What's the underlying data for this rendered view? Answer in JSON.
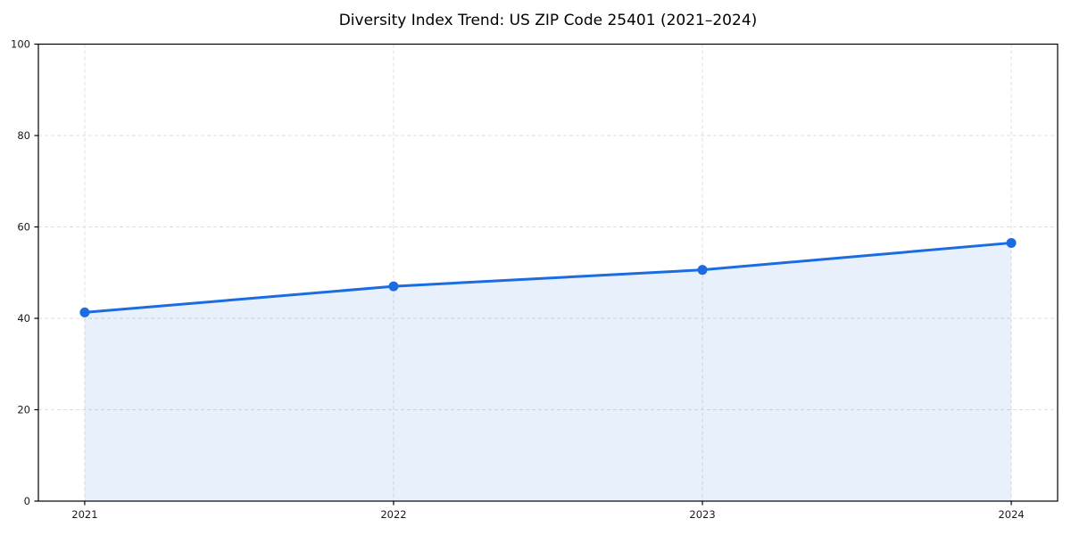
{
  "chart_data": {
    "type": "area",
    "title": "Diversity Index Trend: US ZIP Code 25401 (2021–2024)",
    "xlabel": "",
    "ylabel": "",
    "x": [
      2021,
      2022,
      2023,
      2024
    ],
    "series": [
      {
        "name": "Diversity Index",
        "values": [
          41.3,
          47.0,
          50.6,
          56.5
        ]
      }
    ],
    "xticks": [
      2021,
      2022,
      2023,
      2024
    ],
    "xtick_labels": [
      "2021",
      "2022",
      "2023",
      "2024"
    ],
    "yticks": [
      0,
      20,
      40,
      60,
      80,
      100
    ],
    "ytick_labels": [
      "0",
      "20",
      "40",
      "60",
      "80",
      "100"
    ],
    "xlim": [
      2020.85,
      2024.15
    ],
    "ylim": [
      0,
      100
    ],
    "grid": true,
    "grid_style": "dashed",
    "legend": "none",
    "colors": {
      "line": "#1b6ce0",
      "fill": "#1b6ce0",
      "fill_opacity": 0.1,
      "grid": "#dedede",
      "spine": "#000000",
      "tick_text": "#1a1a1a",
      "background": "#ffffff"
    },
    "marker": {
      "shape": "circle",
      "radius": 5.5
    },
    "line_width": 3
  }
}
